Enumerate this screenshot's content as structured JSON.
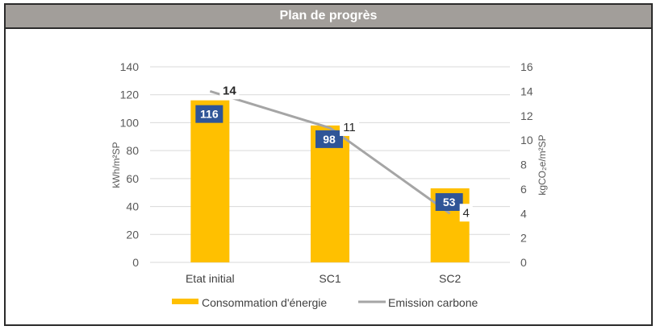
{
  "header": {
    "title": "Plan de progrès"
  },
  "chart_data": {
    "type": "bar+line",
    "title": "Plan de progrès",
    "categories": [
      "Etat initial",
      "SC1",
      "SC2"
    ],
    "series": [
      {
        "name": "Consommation d'énergie",
        "type": "bar",
        "axis": "left",
        "values": [
          116,
          98,
          53
        ],
        "color": "#ffc000",
        "label_bg": "#2f5597"
      },
      {
        "name": "Emission carbone",
        "type": "line",
        "axis": "right",
        "values": [
          14,
          11,
          4
        ],
        "color": "#a5a5a5"
      }
    ],
    "y_left": {
      "label": "kWh/m²SP",
      "lim": [
        0,
        140
      ],
      "ticks": [
        0,
        20,
        40,
        60,
        80,
        100,
        120,
        140
      ]
    },
    "y_right": {
      "label": "kgCO₂e/m²SP",
      "lim": [
        0,
        16
      ],
      "ticks": [
        0,
        2,
        4,
        6,
        8,
        10,
        12,
        14,
        16
      ]
    },
    "grid": true,
    "legend": {
      "position": "bottom",
      "entries": [
        "Consommation d'énergie",
        "Emission carbone"
      ]
    }
  }
}
